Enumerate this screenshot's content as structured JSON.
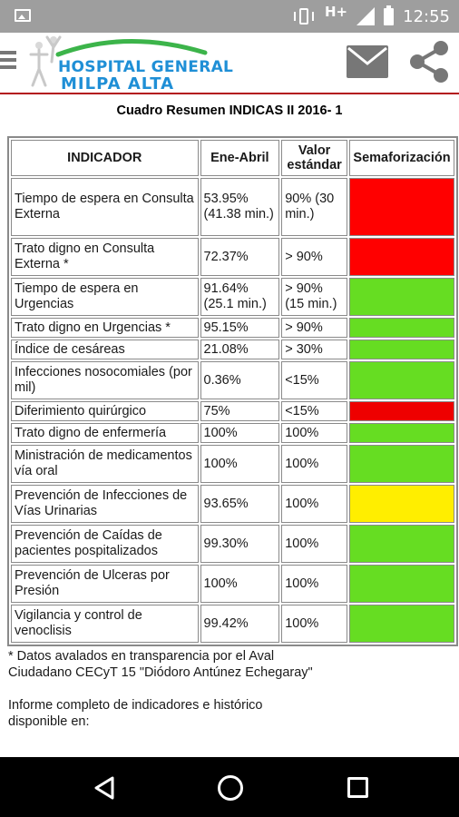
{
  "status_bar": {
    "network": "H+",
    "time": "12:55",
    "icons": [
      "image-icon",
      "vibrate-icon",
      "signal-icon",
      "battery-icon"
    ]
  },
  "app_bar": {
    "logo_line1": "HOSPITAL GENERAL",
    "logo_line2": "MILPA ALTA",
    "icons": [
      "menu-icon",
      "mail-icon",
      "share-icon"
    ],
    "accent_color": "#b3141a",
    "logo_color": "#1f8fd6"
  },
  "report": {
    "title": "Cuadro Resumen INDICAS II 2016- 1",
    "headers": [
      "INDICADOR",
      "Ene-Abril",
      "Valor estándar",
      "Semaforización"
    ],
    "rows": [
      {
        "indicador": "Tiempo de espera en Consulta Externa",
        "valor": "53.95% (41.38 min.)",
        "estandar": "90% (30 min.)",
        "semaforo": "#ff0000"
      },
      {
        "indicador": "Trato digno en Consulta Externa *",
        "valor": "72.37%",
        "estandar": "> 90%",
        "semaforo": "#ff0000"
      },
      {
        "indicador": "Tiempo de espera en Urgencias",
        "valor": "91.64% (25.1 min.)",
        "estandar": "> 90% (15 min.)",
        "semaforo": "#66dd22"
      },
      {
        "indicador": "Trato digno en Urgencias *",
        "valor": "95.15%",
        "estandar": "> 90%",
        "semaforo": "#66dd22"
      },
      {
        "indicador": "Índice de cesáreas",
        "valor": "21.08%",
        "estandar": "> 30%",
        "semaforo": "#66dd22"
      },
      {
        "indicador": "Infecciones nosocomiales (por mil)",
        "valor": "0.36%",
        "estandar": "<15%",
        "semaforo": "#66dd22"
      },
      {
        "indicador": "Diferimiento quirúrgico",
        "valor": "75%",
        "estandar": "<15%",
        "semaforo": "#ee0000"
      },
      {
        "indicador": "Trato digno de enfermería",
        "valor": "100%",
        "estandar": "100%",
        "semaforo": "#66dd22"
      },
      {
        "indicador": "Ministración de medicamentos vía oral",
        "valor": "100%",
        "estandar": "100%",
        "semaforo": "#66dd22"
      },
      {
        "indicador": "Prevención de Infecciones de Vías Urinarias",
        "valor": "93.65%",
        "estandar": "100%",
        "semaforo": "#ffee00"
      },
      {
        "indicador": "Prevención de Caídas de pacientes pospitalizados",
        "valor": "99.30%",
        "estandar": "100%",
        "semaforo": "#66dd22"
      },
      {
        "indicador": "Prevención de Ulceras por Presión",
        "valor": "100%",
        "estandar": "100%",
        "semaforo": "#66dd22"
      },
      {
        "indicador": "Vigilancia y control de venoclisis",
        "valor": "99.42%",
        "estandar": "100%",
        "semaforo": "#66dd22"
      }
    ]
  },
  "notes": {
    "footnote": "* Datos avalados en transparencia por el Aval Ciudadano CECyT 15 \"Diódoro Antúnez Echegaray\"",
    "report_link_text": "Informe completo de indicadores e histórico disponible en:"
  },
  "nav_bar": {
    "icons": [
      "back-icon",
      "home-icon",
      "recent-apps-icon"
    ]
  }
}
